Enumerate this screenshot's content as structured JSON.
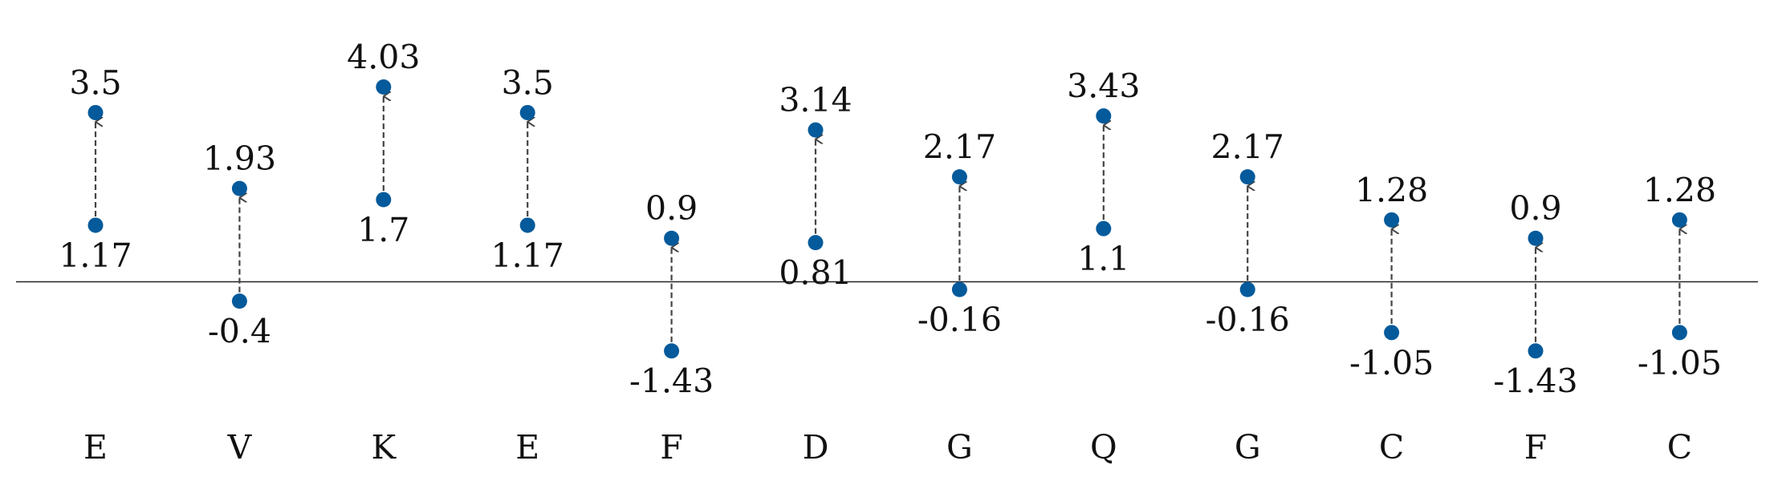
{
  "chart_data": {
    "type": "dumbbell",
    "categories": [
      "E",
      "V",
      "K",
      "E",
      "F",
      "D",
      "G",
      "Q",
      "G",
      "C",
      "F",
      "C"
    ],
    "series": [
      {
        "values": [
          1.17,
          -0.4,
          1.7,
          1.17,
          -1.43,
          0.81,
          -0.16,
          1.1,
          -0.16,
          -1.05,
          -1.43,
          -1.05
        ]
      },
      {
        "values": [
          3.5,
          1.93,
          4.03,
          3.5,
          0.9,
          3.14,
          2.17,
          3.43,
          2.17,
          1.28,
          0.9,
          1.28
        ]
      }
    ],
    "start_labels": [
      "1.17",
      "-0.4",
      "1.7",
      "1.17",
      "-1.43",
      "0.81",
      "-0.16",
      "1.1",
      "-0.16",
      "-1.05",
      "-1.43",
      "-1.05"
    ],
    "end_labels": [
      "3.5",
      "1.93",
      "4.03",
      "3.5",
      "0.9",
      "3.14",
      "2.17",
      "3.43",
      "2.17",
      "1.28",
      "0.9",
      "1.28"
    ],
    "baseline": 0,
    "ylim": [
      -1.5,
      4.2
    ],
    "colors": {
      "point": "#045a9b",
      "arrow": "#444444",
      "baseline": "#222222"
    },
    "grid": false
  }
}
